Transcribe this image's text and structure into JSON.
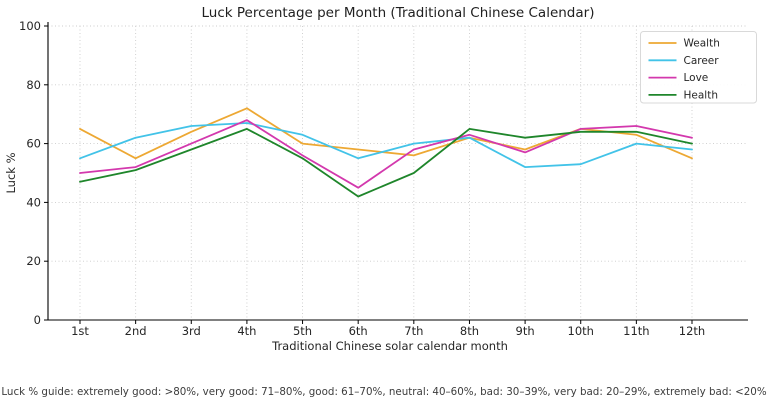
{
  "figure": {
    "caption": "Luck % guide:  extremely good: >80%, very good: 71–80%, good: 61–70%, neutral: 40–60%, bad: 30–39%, very bad: 20–29%, extremely bad: <20%"
  },
  "chart_data": {
    "type": "line",
    "title": "Luck Percentage per Month (Traditional Chinese Calendar)",
    "xlabel": "Traditional Chinese solar calendar month",
    "ylabel": "Luck %",
    "categories": [
      "1st",
      "2nd",
      "3rd",
      "4th",
      "5th",
      "6th",
      "7th",
      "8th",
      "9th",
      "10th",
      "11th",
      "12th"
    ],
    "ylim": [
      0,
      100
    ],
    "yticks": [
      0,
      20,
      40,
      60,
      80,
      100
    ],
    "grid": "dotted",
    "legend_position": "upper right",
    "series": [
      {
        "name": "Wealth",
        "color": "#eda833",
        "values": [
          65,
          55,
          64,
          72,
          60,
          58,
          56,
          62,
          58,
          65,
          63,
          55
        ]
      },
      {
        "name": "Career",
        "color": "#42c3e8",
        "values": [
          55,
          62,
          66,
          67,
          63,
          55,
          60,
          62,
          52,
          53,
          60,
          58
        ]
      },
      {
        "name": "Love",
        "color": "#d338ad",
        "values": [
          50,
          52,
          60,
          68,
          56,
          45,
          58,
          63,
          57,
          65,
          66,
          62
        ]
      },
      {
        "name": "Health",
        "color": "#1f862b",
        "values": [
          47,
          51,
          58,
          65,
          55,
          42,
          50,
          65,
          62,
          64,
          64,
          60
        ]
      }
    ],
    "colors": {
      "grid": "#cccccc",
      "spine": "#000000",
      "tick_label": "#262626",
      "legend_border": "#d9d9d9"
    }
  }
}
